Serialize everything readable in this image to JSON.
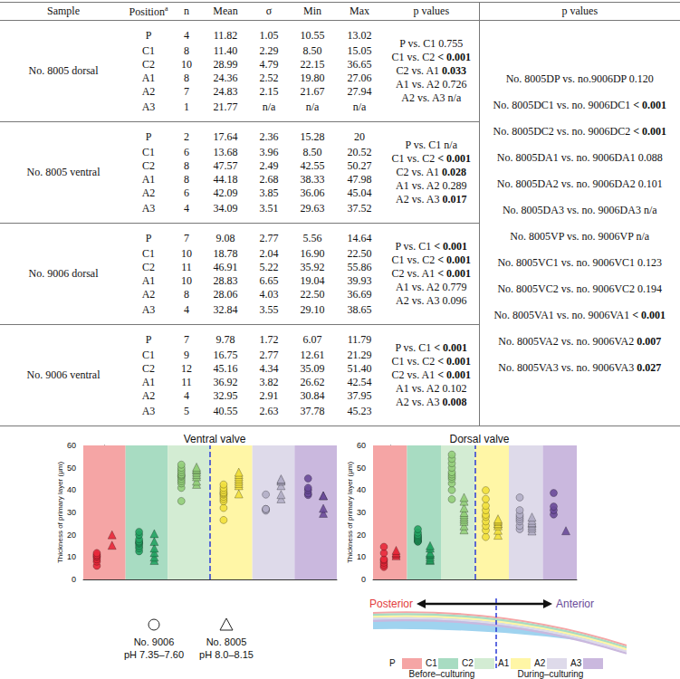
{
  "table": {
    "header": [
      "Sample",
      "Position",
      "n",
      "Mean",
      "σ",
      "Min",
      "Max",
      "p values",
      "p values"
    ],
    "header_note": "a",
    "groups": [
      {
        "sample": "No. 8005 dorsal",
        "rows": [
          [
            "P",
            "4",
            "11.82",
            "1.05",
            "10.55",
            "13.02"
          ],
          [
            "C1",
            "8",
            "11.40",
            "2.29",
            "8.50",
            "15.05"
          ],
          [
            "C2",
            "10",
            "28.99",
            "4.79",
            "22.15",
            "36.65"
          ],
          [
            "A1",
            "8",
            "24.36",
            "2.52",
            "19.80",
            "27.06"
          ],
          [
            "A2",
            "7",
            "24.83",
            "2.15",
            "21.67",
            "27.94"
          ],
          [
            "A3",
            "1",
            "21.77",
            "n/a",
            "n/a",
            "n/a"
          ]
        ],
        "p_values": [
          {
            "text": "P vs. C1",
            "p": "0.755",
            "bold": false
          },
          {
            "text": "C1 vs. C2",
            "p": "< 0.001",
            "bold": true
          },
          {
            "text": "C2 vs. A1",
            "p": "0.033",
            "bold": true
          },
          {
            "text": "A1 vs. A2",
            "p": "0.726",
            "bold": false
          },
          {
            "text": "A2 vs. A3",
            "p": "n/a",
            "bold": false
          }
        ]
      },
      {
        "sample": "No. 8005 ventral",
        "rows": [
          [
            "P",
            "2",
            "17.64",
            "2.36",
            "15.28",
            "20"
          ],
          [
            "C1",
            "6",
            "13.68",
            "3.96",
            "8.50",
            "20.52"
          ],
          [
            "C2",
            "8",
            "47.57",
            "2.49",
            "42.55",
            "50.27"
          ],
          [
            "A1",
            "8",
            "44.18",
            "2.68",
            "38.33",
            "47.98"
          ],
          [
            "A2",
            "6",
            "42.09",
            "3.85",
            "36.06",
            "45.04"
          ],
          [
            "A3",
            "4",
            "34.09",
            "3.51",
            "29.63",
            "37.52"
          ]
        ],
        "p_values": [
          {
            "text": "P vs. C1",
            "p": "n/a",
            "bold": false
          },
          {
            "text": "C1 vs. C2",
            "p": "< 0.001",
            "bold": true
          },
          {
            "text": "C2 vs. A1",
            "p": "0.028",
            "bold": true
          },
          {
            "text": "A1 vs. A2",
            "p": "0.289",
            "bold": false
          },
          {
            "text": "A2 vs. A3",
            "p": "0.017",
            "bold": true
          }
        ]
      },
      {
        "sample": "No. 9006 dorsal",
        "rows": [
          [
            "P",
            "7",
            "9.08",
            "2.77",
            "5.56",
            "14.64"
          ],
          [
            "C1",
            "10",
            "18.78",
            "2.04",
            "16.90",
            "22.50"
          ],
          [
            "C2",
            "11",
            "46.91",
            "5.22",
            "35.92",
            "55.86"
          ],
          [
            "A1",
            "10",
            "28.83",
            "6.65",
            "19.04",
            "39.93"
          ],
          [
            "A2",
            "8",
            "28.06",
            "4.03",
            "22.50",
            "36.69"
          ],
          [
            "A3",
            "4",
            "32.84",
            "3.55",
            "29.10",
            "38.65"
          ]
        ],
        "p_values": [
          {
            "text": "P vs. C1",
            "p": "< 0.001",
            "bold": true
          },
          {
            "text": "C1 vs. C2",
            "p": "< 0.001",
            "bold": true
          },
          {
            "text": "C2 vs. A1",
            "p": "< 0.001",
            "bold": true
          },
          {
            "text": "A1 vs. A2",
            "p": "0.779",
            "bold": false
          },
          {
            "text": "A2 vs. A3",
            "p": "0.096",
            "bold": false
          }
        ]
      },
      {
        "sample": "No. 9006 ventral",
        "rows": [
          [
            "P",
            "7",
            "9.78",
            "1.72",
            "6.07",
            "11.79"
          ],
          [
            "C1",
            "9",
            "16.75",
            "2.77",
            "12.61",
            "21.29"
          ],
          [
            "C2",
            "12",
            "45.16",
            "4.34",
            "35.09",
            "51.40"
          ],
          [
            "A1",
            "11",
            "36.92",
            "3.82",
            "26.62",
            "42.54"
          ],
          [
            "A2",
            "4",
            "32.95",
            "2.91",
            "30.84",
            "37.95"
          ],
          [
            "A3",
            "5",
            "40.55",
            "2.63",
            "37.78",
            "45.23"
          ]
        ],
        "p_values": [
          {
            "text": "P vs. C1",
            "p": "< 0.001",
            "bold": true
          },
          {
            "text": "C1 vs. C2",
            "p": "< 0.001",
            "bold": true
          },
          {
            "text": "C2 vs. A1",
            "p": "< 0.001",
            "bold": true
          },
          {
            "text": "A1 vs. A2",
            "p": "0.102",
            "bold": false
          },
          {
            "text": "A2 vs. A3",
            "p": "0.008",
            "bold": true
          }
        ]
      }
    ],
    "comparisons": [
      {
        "text": "No. 8005DP vs. no.9006DP",
        "p": "0.120",
        "bold": false
      },
      {
        "text": "No. 8005DC1 vs. no. 9006DC1",
        "p": "< 0.001",
        "bold": true
      },
      {
        "text": "No. 8005DC2 vs. no. 9006DC2",
        "p": "< 0.001",
        "bold": true
      },
      {
        "text": "No. 8005DA1 vs. no. 9006DA1",
        "p": "0.088",
        "bold": false
      },
      {
        "text": "No. 8005DA2 vs. no. 9006DA2",
        "p": "0.101",
        "bold": false
      },
      {
        "text": "No. 8005DA3 vs. no. 9006DA3",
        "p": "n/a",
        "bold": false
      },
      {
        "text": "No. 8005VP vs. no. 9006VP",
        "p": "n/a",
        "bold": false
      },
      {
        "text": "No. 8005VC1 vs. no. 9006VC1",
        "p": "0.123",
        "bold": false
      },
      {
        "text": "No. 8005VC2 vs. no. 9006VC2",
        "p": "0.194",
        "bold": false
      },
      {
        "text": "No. 8005VA1 vs. no. 9006VA1",
        "p": "< 0.001",
        "bold": true
      },
      {
        "text": "No. 8005VA2 vs. no. 9006VA2",
        "p": "0.007",
        "bold": true
      },
      {
        "text": "No. 8005VA3 vs. no. 9006VA3",
        "p": "0.027",
        "bold": true
      }
    ]
  },
  "chart_data": [
    {
      "type": "scatter",
      "title": "Ventral valve",
      "y_label": "Thickness of primary layer (μm)",
      "categories": [
        "P",
        "C1",
        "C2",
        "A1",
        "A2",
        "A3"
      ],
      "colors": [
        "#e8283a",
        "#24a363",
        "#93cf7a",
        "#f2e03c",
        "#b3aec6",
        "#6a4b99"
      ],
      "ylim": [
        0,
        60
      ],
      "yticks": [
        0,
        10,
        20,
        30,
        40,
        50,
        60
      ],
      "grid": false,
      "tick_labels": "y",
      "series": [
        {
          "name": "No. 9006",
          "marker": "circle",
          "values": [
            [
              6.1,
              8,
              9,
              10,
              10.5,
              11,
              11.8
            ],
            [
              12.6,
              14,
              15,
              16,
              16.5,
              17,
              18,
              20,
              21.3
            ],
            [
              35.1,
              41,
              43,
              44,
              45,
              46,
              46.5,
              47,
              48,
              49,
              50,
              51.4
            ],
            [
              26.6,
              32,
              35,
              36,
              37,
              38,
              38.5,
              39,
              40,
              41,
              42.5
            ],
            [
              30.8,
              31.5,
              31.5,
              38
            ],
            [
              37.8,
              38.5,
              40,
              41,
              45.2
            ]
          ]
        },
        {
          "name": "No. 8005",
          "marker": "triangle",
          "values": [
            [
              15.3,
              20
            ],
            [
              8.5,
              10,
              12,
              14,
              17,
              20.5
            ],
            [
              42.6,
              44,
              46,
              47,
              48,
              49,
              49.5,
              50.3
            ],
            [
              38.3,
              42,
              43,
              44,
              45,
              46,
              47,
              48
            ],
            [
              36.1,
              38,
              42,
              44,
              44.5,
              45
            ],
            [
              29.6,
              31.8,
              37.5,
              37.5
            ]
          ]
        }
      ]
    },
    {
      "type": "scatter",
      "title": "Dorsal valve",
      "y_label": "Thickness of primary layer (μm)",
      "categories": [
        "P",
        "C1",
        "C2",
        "A1",
        "A2",
        "A3"
      ],
      "colors": [
        "#e8283a",
        "#24a363",
        "#93cf7a",
        "#f2e03c",
        "#b3aec6",
        "#6a4b99"
      ],
      "ylim": [
        0,
        60
      ],
      "yticks": [
        0,
        10,
        20,
        30,
        40,
        50,
        60
      ],
      "grid": false,
      "tick_labels": "y",
      "series": [
        {
          "name": "No. 9006",
          "marker": "circle",
          "values": [
            [
              5.6,
              6.5,
              7.5,
              8.5,
              9,
              11.8,
              14.6
            ],
            [
              16.9,
              17,
              17.5,
              18,
              18.5,
              19,
              19.5,
              20,
              21,
              22.5
            ],
            [
              35.9,
              40,
              43,
              45,
              46,
              47,
              48,
              50,
              52,
              54,
              55.9
            ],
            [
              19,
              22,
              24,
              26,
              28,
              29,
              31,
              33,
              36,
              39.9
            ],
            [
              22.5,
              24,
              26,
              27,
              28,
              29,
              31,
              36.7
            ],
            [
              29.1,
              31,
              32.6,
              38.7
            ]
          ]
        },
        {
          "name": "No. 8005",
          "marker": "triangle",
          "values": [
            [
              10.6,
              11.5,
              12,
              13
            ],
            [
              8.5,
              9,
              10,
              11,
              11.5,
              12,
              14,
              15.1
            ],
            [
              22.2,
              24,
              26,
              27,
              28,
              29,
              30,
              32,
              35,
              36.7
            ],
            [
              19.8,
              22,
              24,
              25,
              25,
              26,
              26.5,
              27.1
            ],
            [
              21.7,
              23,
              24,
              25,
              25.5,
              26.5,
              27.9
            ],
            [
              21.8
            ]
          ]
        }
      ]
    }
  ],
  "key": {
    "items": [
      {
        "label": "No. 9006",
        "note": "pH 7.35–7.60",
        "marker": "circle"
      },
      {
        "label": "No. 8005",
        "note": "pH 8.0–8.15",
        "marker": "triangle"
      }
    ]
  },
  "diagram": {
    "posterior": "Posterior",
    "anterior": "Anterior",
    "phases": [
      {
        "label": "Before–culturing",
        "positions": [
          "P",
          "C1",
          "C2"
        ]
      },
      {
        "label": "During–culturing",
        "positions": [
          "A1",
          "A2",
          "A3"
        ]
      }
    ]
  }
}
